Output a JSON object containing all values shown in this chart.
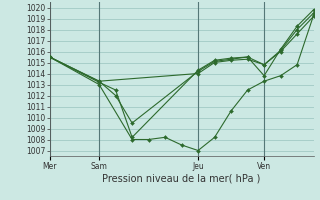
{
  "title": "Pression niveau de la mer( hPa )",
  "background_color": "#cce8e3",
  "grid_color": "#99c4be",
  "line_color": "#2d6a2d",
  "ylim": [
    1006.5,
    1020.5
  ],
  "yticks": [
    1007,
    1008,
    1009,
    1010,
    1011,
    1012,
    1013,
    1014,
    1015,
    1016,
    1017,
    1018,
    1019,
    1020
  ],
  "day_labels": [
    "Mer",
    "Sam",
    "Jeu",
    "Ven"
  ],
  "day_positions": [
    0,
    18,
    54,
    78
  ],
  "xlim": [
    0,
    96
  ],
  "series": [
    {
      "x": [
        0,
        18,
        30,
        36,
        42,
        48,
        54,
        60,
        66,
        72,
        78,
        84,
        90,
        96
      ],
      "y": [
        1015.5,
        1013.0,
        1008.0,
        1008.0,
        1008.2,
        1007.5,
        1007.0,
        1008.2,
        1010.6,
        1012.5,
        1013.3,
        1013.8,
        1014.8,
        1019.3
      ]
    },
    {
      "x": [
        0,
        18,
        54,
        60,
        66,
        72,
        78,
        84,
        90,
        96
      ],
      "y": [
        1015.5,
        1013.3,
        1014.0,
        1015.0,
        1015.2,
        1015.3,
        1014.8,
        1016.0,
        1017.6,
        1019.2
      ]
    },
    {
      "x": [
        0,
        18,
        24,
        30,
        54,
        60,
        66,
        72,
        78,
        84,
        90,
        96
      ],
      "y": [
        1015.5,
        1013.3,
        1012.0,
        1009.5,
        1014.2,
        1015.1,
        1015.3,
        1015.5,
        1014.8,
        1016.1,
        1018.0,
        1019.5
      ]
    },
    {
      "x": [
        0,
        18,
        24,
        30,
        54,
        60,
        66,
        72,
        78,
        84,
        90,
        96
      ],
      "y": [
        1015.5,
        1013.2,
        1012.5,
        1008.2,
        1014.3,
        1015.2,
        1015.4,
        1015.5,
        1013.8,
        1016.2,
        1018.3,
        1019.8
      ]
    }
  ],
  "ylabel_fontsize": 5.5,
  "xlabel_fontsize": 7,
  "tick_fontsize": 5.5
}
